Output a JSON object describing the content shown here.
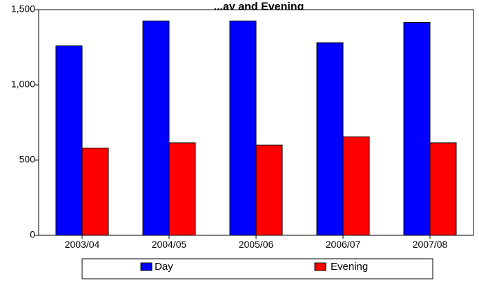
{
  "chart_data": {
    "type": "bar",
    "title": "...ay and Evening",
    "categories": [
      "2003/04",
      "2004/05",
      "2005/06",
      "2006/07",
      "2007/08"
    ],
    "series": [
      {
        "name": "Day",
        "values": [
          1260,
          1425,
          1425,
          1280,
          1415
        ],
        "color": "#0000ff"
      },
      {
        "name": "Evening",
        "values": [
          580,
          615,
          600,
          655,
          615
        ],
        "color": "#ff0000"
      }
    ],
    "yticks": [
      "0",
      "500",
      "1,000",
      "1,500"
    ],
    "yticks_values": [
      0,
      500,
      1000,
      1500
    ],
    "ylim": [
      0,
      1500
    ],
    "xlabel": "",
    "ylabel": "",
    "grid": false,
    "legend_position": "bottom"
  }
}
